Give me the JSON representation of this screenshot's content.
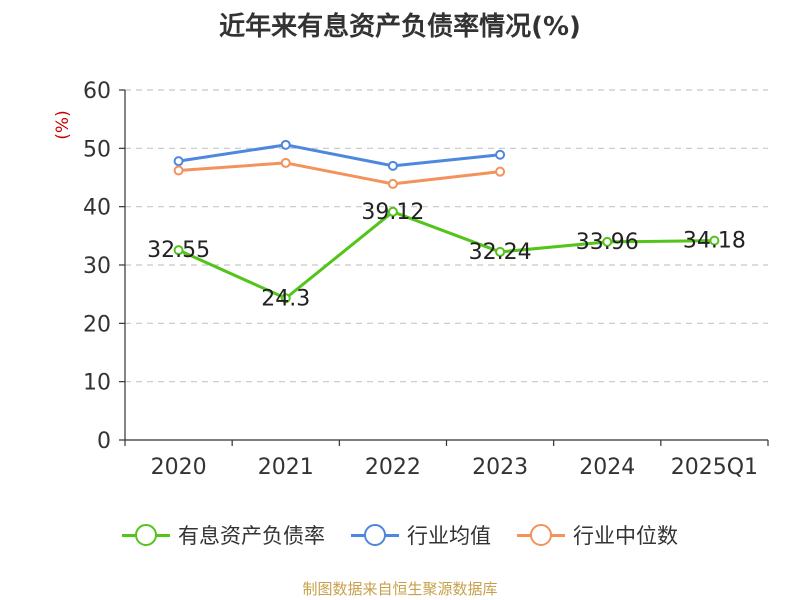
{
  "chart_data": {
    "type": "line",
    "title": "近年来有息资产负债率情况(%)",
    "ylabel": "(%)",
    "categories": [
      "2020",
      "2021",
      "2022",
      "2023",
      "2024",
      "2025Q1"
    ],
    "ylim": [
      0,
      60
    ],
    "yticks": [
      0,
      10,
      20,
      30,
      40,
      50,
      60
    ],
    "grid": true,
    "legend_position": "bottom",
    "series": [
      {
        "name": "有息资产负债率",
        "color": "#52c41a",
        "values": [
          32.55,
          24.3,
          39.12,
          32.24,
          33.96,
          34.18
        ],
        "labels": [
          "32.55",
          "24.3",
          "39.12",
          "32.24",
          "33.96",
          "34.18"
        ]
      },
      {
        "name": "行业均值",
        "color": "#4e87de",
        "values": [
          47.8,
          50.6,
          47.0,
          48.9,
          null,
          null
        ]
      },
      {
        "name": "行业中位数",
        "color": "#f4925c",
        "values": [
          46.2,
          47.5,
          43.9,
          46.0,
          null,
          null
        ]
      }
    ]
  },
  "source": "制图数据来自恒生聚源数据库"
}
